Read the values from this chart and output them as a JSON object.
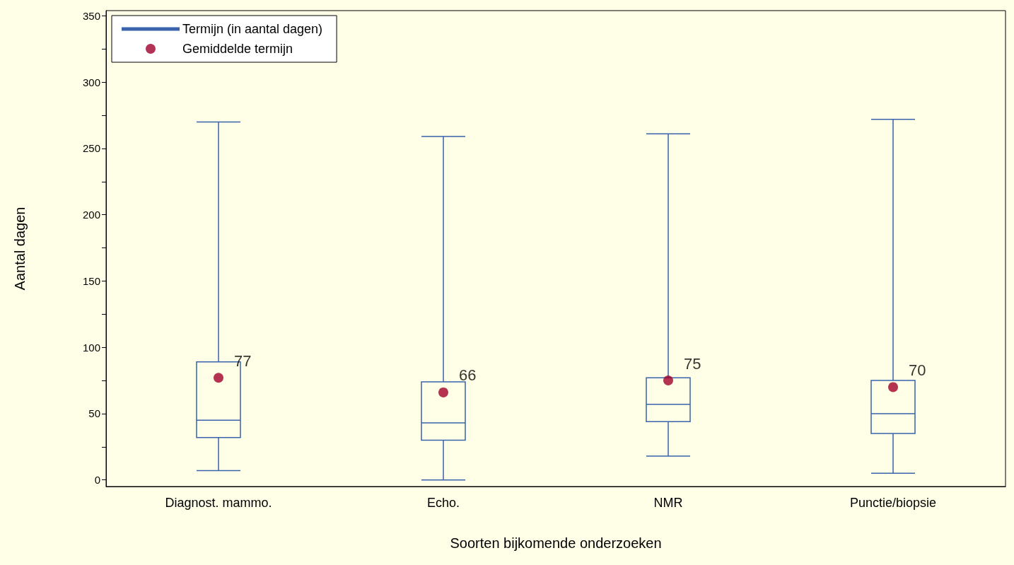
{
  "chart_data": {
    "type": "box",
    "xlabel": "Soorten bijkomende onderzoeken",
    "ylabel": "Aantal dagen",
    "categories": [
      "Diagnost. mammo.",
      "Echo.",
      "NMR",
      "Punctie/biopsie"
    ],
    "ylim": [
      -5,
      354
    ],
    "yticks": [
      0,
      {
        "value": 25,
        "label": null
      },
      50,
      {
        "value": 75,
        "label": null
      },
      100,
      {
        "value": 125,
        "label": null
      },
      150,
      {
        "value": 175,
        "label": null
      },
      200,
      {
        "value": 225,
        "label": null
      },
      250,
      {
        "value": 275,
        "label": null
      },
      300,
      {
        "value": 325,
        "label": null
      },
      350
    ],
    "grid": false,
    "legend": "top left",
    "data_labels": true,
    "series": [
      {
        "name": "Termijn (in aantal dagen)",
        "color": "#3a63ad",
        "boxes": [
          {
            "low": 7,
            "q1": 32,
            "median": 45,
            "q3": 89,
            "high": 270
          },
          {
            "low": 0,
            "q1": 30,
            "median": 43,
            "q3": 74,
            "high": 259
          },
          {
            "low": 18,
            "q1": 44,
            "median": 57,
            "q3": 77,
            "high": 261
          },
          {
            "low": 5,
            "q1": 35,
            "median": 50,
            "q3": 75,
            "high": 272
          }
        ]
      },
      {
        "name": "Gemiddelde termijn",
        "type": "scatter",
        "color": "#a0002c",
        "marker": "circle",
        "x": [
          "Diagnost. mammo.",
          "Echo.",
          "NMR",
          "Punctie/biopsie"
        ],
        "values": [
          77,
          66,
          75,
          70
        ]
      }
    ]
  }
}
